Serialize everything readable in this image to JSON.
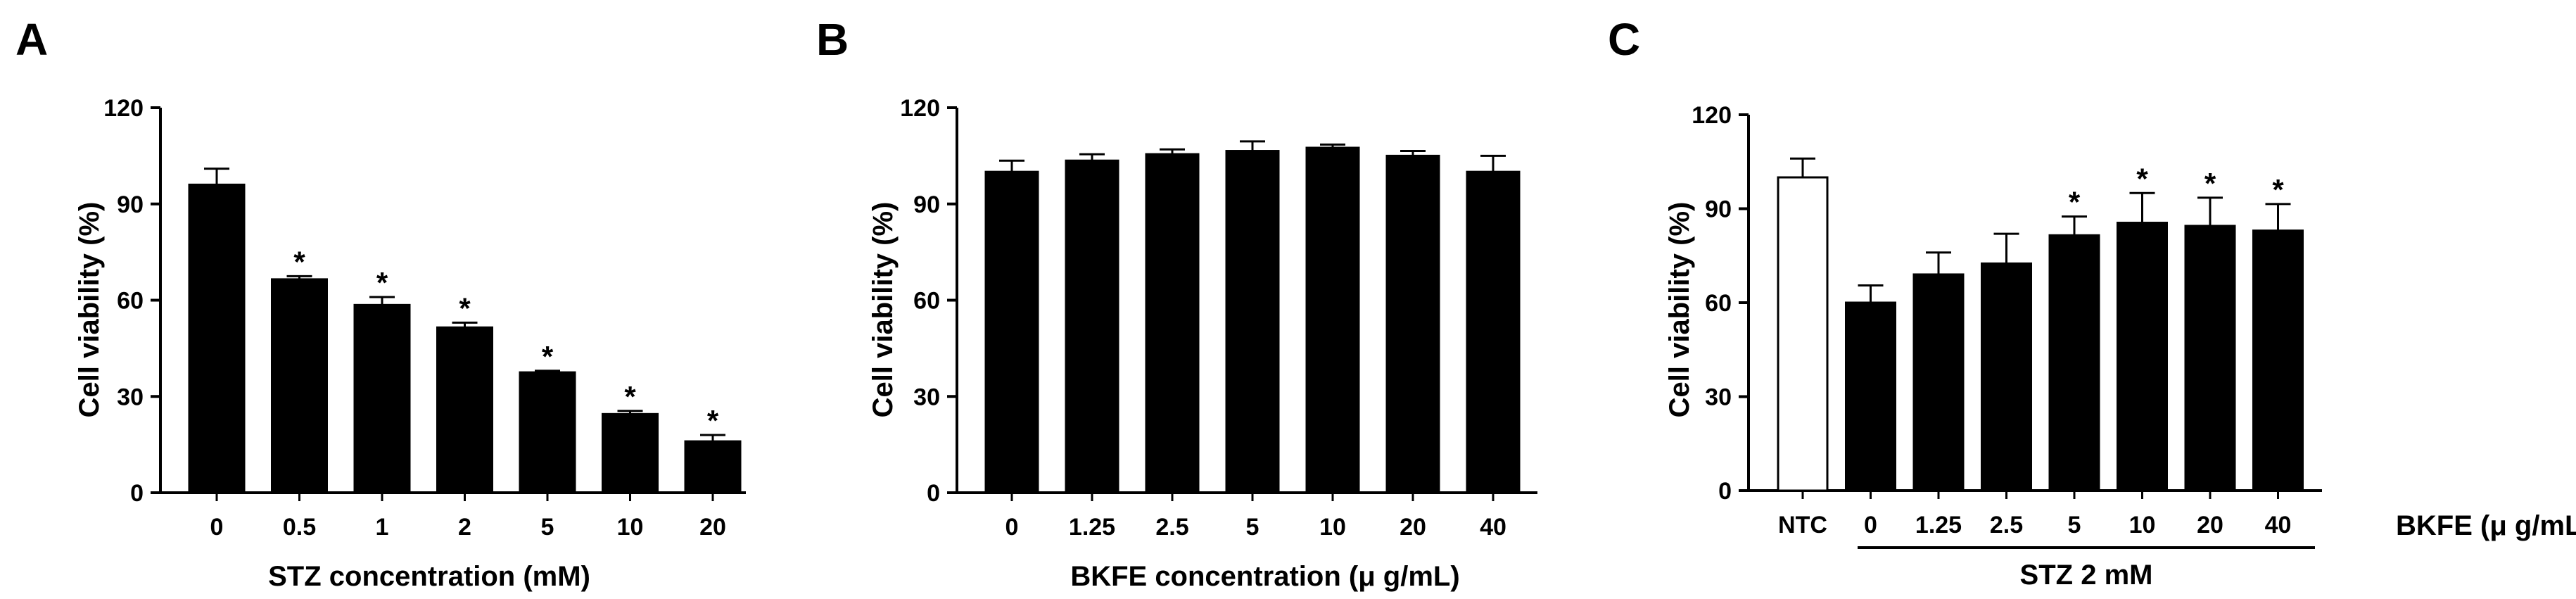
{
  "chart_data": [
    {
      "panel": "A",
      "type": "bar",
      "categories": [
        "0",
        "0.5",
        "1",
        "2",
        "5",
        "10",
        "20"
      ],
      "values": [
        96,
        66.5,
        58.5,
        51.5,
        37.5,
        24.5,
        16
      ],
      "errors": [
        5,
        1,
        2.5,
        1.5,
        0.5,
        1,
        2
      ],
      "significance": [
        "",
        "*",
        "*",
        "*",
        "*",
        "*",
        "*"
      ],
      "xlabel": "STZ concentration (mM)",
      "ylabel": "Cell viability (%)",
      "ylim": [
        0,
        120
      ],
      "yticks": [
        "0",
        "30",
        "60",
        "90",
        "120"
      ],
      "bar_fill": "#000000",
      "grid": false
    },
    {
      "panel": "B",
      "type": "bar",
      "categories": [
        "0",
        "1.25",
        "2.5",
        "5",
        "10",
        "20",
        "40"
      ],
      "values": [
        100,
        103.5,
        105.5,
        106.5,
        107.5,
        105,
        100
      ],
      "errors": [
        3.5,
        2,
        1.5,
        3,
        1,
        1.5,
        5
      ],
      "significance": [
        "",
        "",
        "",
        "",
        "",
        "",
        ""
      ],
      "xlabel": "BKFE concentration (μ g/mL)",
      "ylabel": "Cell viability (%)",
      "ylim": [
        0,
        120
      ],
      "yticks": [
        "0",
        "30",
        "60",
        "90",
        "120"
      ],
      "bar_fill": "#000000",
      "grid": false
    },
    {
      "panel": "C",
      "type": "bar",
      "categories": [
        "NTC",
        "0",
        "1.25",
        "2.5",
        "5",
        "10",
        "20",
        "40"
      ],
      "values": [
        100,
        60,
        69,
        72.5,
        81.5,
        85.5,
        84.5,
        83
      ],
      "errors": [
        6,
        5.5,
        7,
        9.5,
        6,
        9.5,
        9,
        8.5
      ],
      "significance": [
        "",
        "",
        "",
        "",
        "*",
        "*",
        "*",
        "*"
      ],
      "bar_fills": [
        "#ffffff",
        "#000000",
        "#000000",
        "#000000",
        "#000000",
        "#000000",
        "#000000",
        "#000000"
      ],
      "xlabel": "BKFE (μ g/mL)",
      "group_label": "STZ 2 mM",
      "ylabel": "Cell viability (%)",
      "ylim": [
        0,
        120
      ],
      "yticks": [
        "0",
        "30",
        "60",
        "90",
        "120"
      ],
      "grid": false
    }
  ]
}
